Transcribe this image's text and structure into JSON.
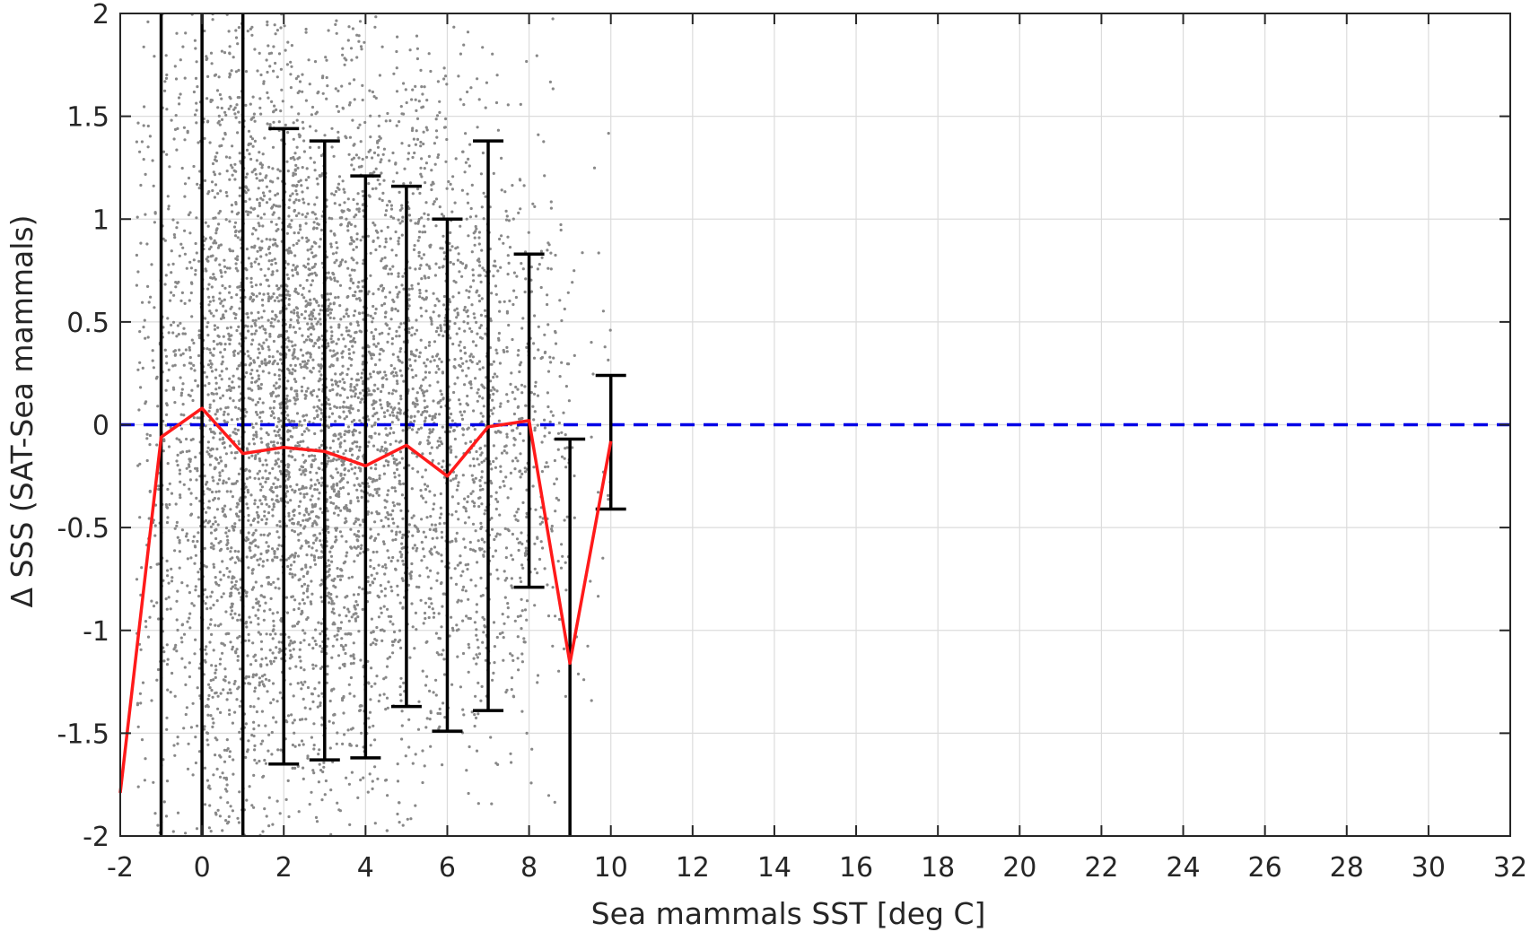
{
  "chart_data": {
    "type": "scatter",
    "title": "",
    "xlabel": "Sea mammals SST [deg C]",
    "ylabel": "Δ SSS (SAT-Sea mammals)",
    "xlim": [
      -2,
      32
    ],
    "ylim": [
      -2,
      2
    ],
    "xticks": [
      -2,
      0,
      2,
      4,
      6,
      8,
      10,
      12,
      14,
      16,
      18,
      20,
      22,
      24,
      26,
      28,
      30,
      32
    ],
    "yticks": [
      -2,
      -1.5,
      -1,
      -0.5,
      0,
      0.5,
      1,
      1.5,
      2
    ],
    "grid": true,
    "legend": "none",
    "colors": {
      "scatter": "#888888",
      "mean_line": "#ff1a1a",
      "error_bars": "#000000",
      "zero_line": "#0000e6"
    },
    "reference_line": {
      "y": 0,
      "style": "dashed"
    },
    "scatter_points": {
      "description_range_x": [
        -1.5,
        10
      ],
      "note": "dense cloud of individual matchups between x = -1.5 and 10, spread over y from -2 to 2"
    },
    "series": [
      {
        "kind": "mean_line",
        "x": [
          -2,
          -1,
          0,
          1,
          2,
          3,
          4,
          5,
          6,
          7,
          8,
          9,
          10
        ],
        "y": [
          -1.79,
          -0.06,
          0.08,
          -0.14,
          -0.11,
          -0.13,
          -0.2,
          -0.1,
          -0.25,
          -0.01,
          0.02,
          -1.16,
          -0.08
        ]
      },
      {
        "kind": "error_bars",
        "x": [
          -1,
          0,
          1,
          2,
          3,
          4,
          5,
          6,
          7,
          8,
          9,
          10
        ],
        "lower": [
          -2,
          -2,
          -2,
          -1.65,
          -1.63,
          -1.62,
          -1.37,
          -1.49,
          -1.39,
          -0.79,
          -2,
          -0.41
        ],
        "upper": [
          2,
          2,
          2,
          1.44,
          1.38,
          1.21,
          1.16,
          1.0,
          1.38,
          0.83,
          -0.07,
          0.24
        ]
      }
    ]
  }
}
